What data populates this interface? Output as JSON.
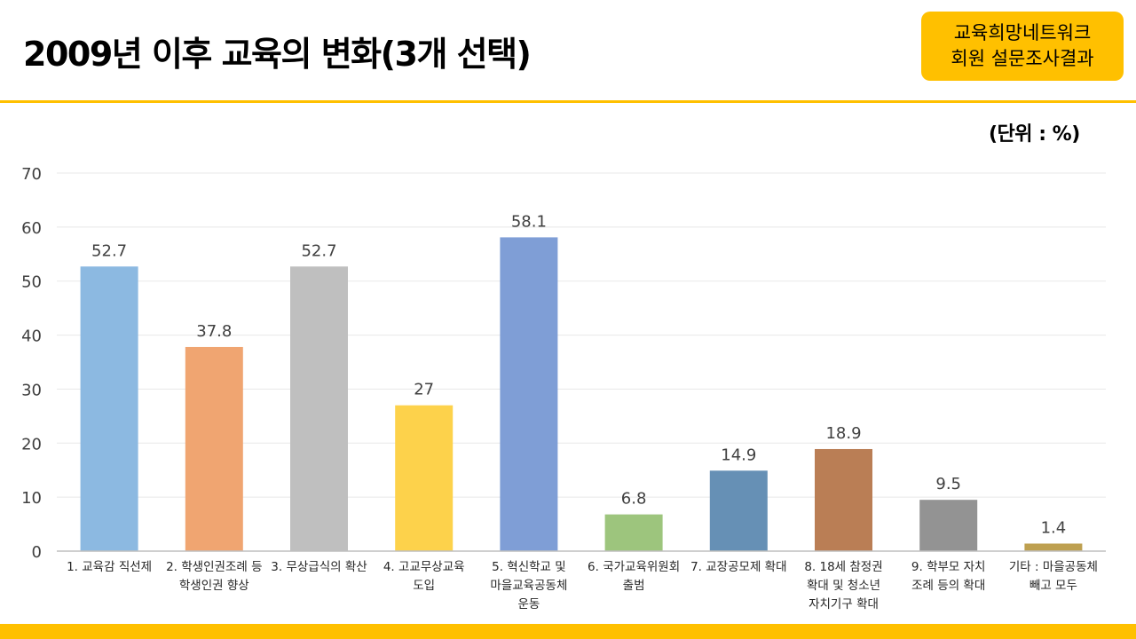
{
  "header": {
    "title": "2009년 이후 교육의 변화(3개 선택)",
    "badge_line1": "교육희망네트워크",
    "badge_line2": "회원 설문조사결과",
    "unit_label": "(단위 :  %)"
  },
  "colors": {
    "accent": "#FFC000",
    "grid": "#E8E8E8",
    "axis": "#BFBFBF",
    "label": "#404040"
  },
  "chart_data": {
    "type": "bar",
    "title": "2009년 이후 교육의 변화(3개 선택)",
    "ylim": [
      0,
      70
    ],
    "yticks": [
      0,
      10,
      20,
      30,
      40,
      50,
      60,
      70
    ],
    "grid": true,
    "legend": "none",
    "categories": [
      [
        "1. 교육감 직선제"
      ],
      [
        "2. 학생인권조례 등",
        "학생인권 향상"
      ],
      [
        "3. 무상급식의 확산"
      ],
      [
        "4. 고교무상교육",
        "도입"
      ],
      [
        "5. 혁신학교 및",
        "마을교육공동체",
        "운동"
      ],
      [
        "6. 국가교육위원회",
        "출범"
      ],
      [
        "7. 교장공모제 확대"
      ],
      [
        "8. 18세 참정권",
        "확대 및 청소년",
        "자치기구 확대"
      ],
      [
        "9. 학부모 자치",
        "조례 등의 확대"
      ],
      [
        "기타 : 마을공동체",
        "빼고 모두"
      ]
    ],
    "values": [
      52.7,
      37.8,
      52.7,
      27,
      58.1,
      6.8,
      14.9,
      18.9,
      9.5,
      1.4
    ],
    "value_labels": [
      "52.7",
      "37.8",
      "52.7",
      "27",
      "58.1",
      "6.8",
      "14.9",
      "18.9",
      "9.5",
      "1.4"
    ],
    "bar_colors": [
      "#8CB9E1",
      "#F0A571",
      "#BFBFBF",
      "#FDD24B",
      "#7F9ED6",
      "#9DC57D",
      "#6690B5",
      "#BA7E55",
      "#939393",
      "#BEA050"
    ]
  }
}
